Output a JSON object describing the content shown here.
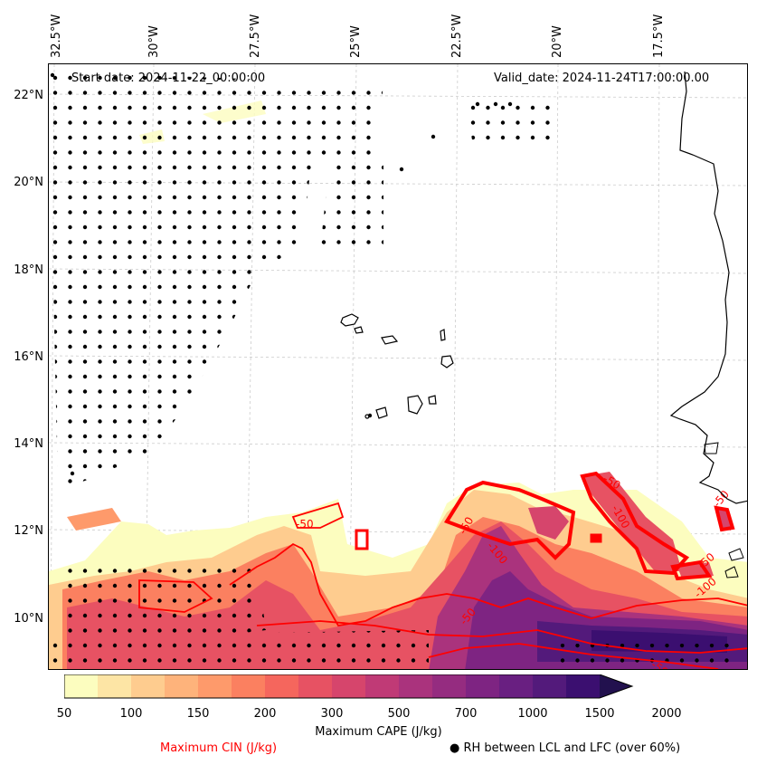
{
  "lon_ticks": [
    "32.5°W",
    "30°W",
    "27.5°W",
    "25°W",
    "22.5°W",
    "20°W",
    "17.5°W"
  ],
  "lat_ticks": [
    "22°N",
    "20°N",
    "18°N",
    "16°N",
    "14°N",
    "12°N",
    "10°N"
  ],
  "start_date": "Start date: 2024-11-22_00:00:00",
  "valid_date": "Valid_date: 2024-11-24T17:00:00.00",
  "contour_label": "-50",
  "contour_label_100": "-100",
  "colorbar": {
    "tick_labels": [
      "50",
      "100",
      "150",
      "200",
      "300",
      "500",
      "700",
      "1000",
      "1500",
      "2000"
    ],
    "colors": [
      "#fcfdbf",
      "#fde5a5",
      "#fecc8f",
      "#feb37b",
      "#fe9a6b",
      "#fb8060",
      "#f5665d",
      "#e75263",
      "#d6456c",
      "#c03a76",
      "#aa337d",
      "#952c80",
      "#7e2482",
      "#691f81",
      "#531a7b",
      "#3b0f70",
      "#22114e"
    ],
    "label": "Maximum CAPE (J/kg)"
  },
  "legend": {
    "cin_label": "Maximum CIN (J/kg)",
    "cin_color": "#ff0000",
    "rh_marker": "●",
    "rh_label": "RH between LCL and LFC (over 60%)"
  }
}
